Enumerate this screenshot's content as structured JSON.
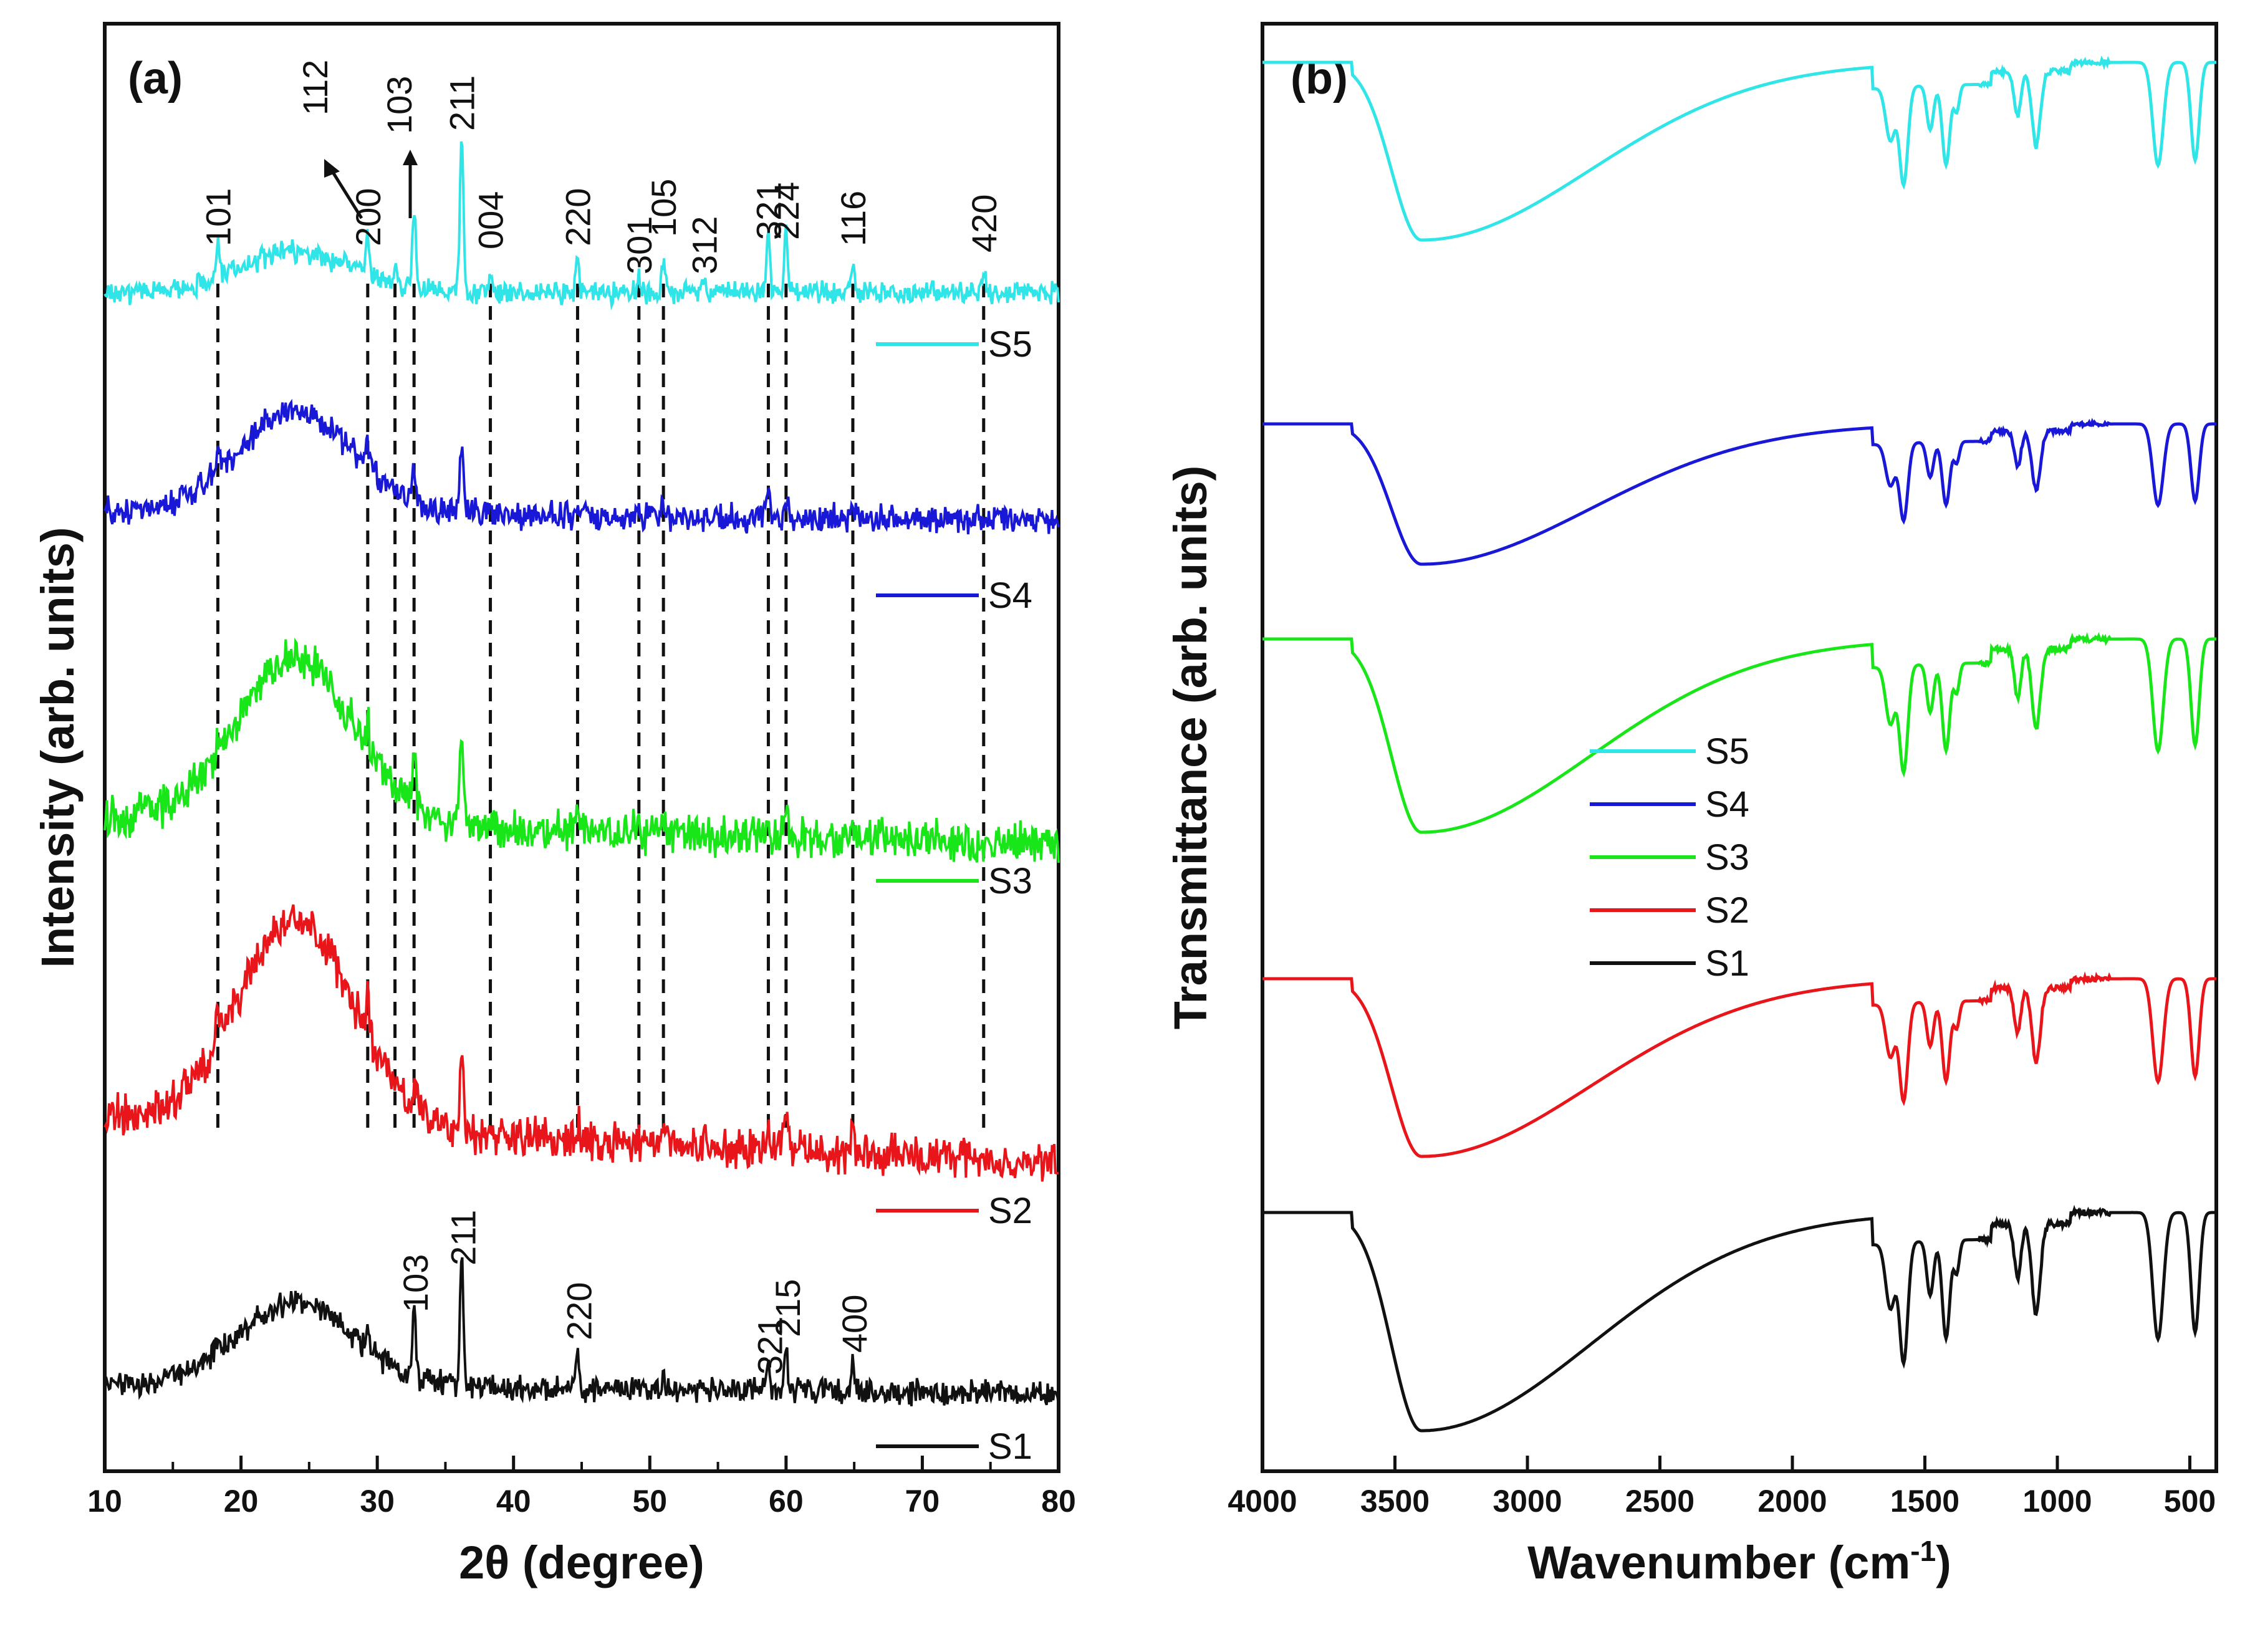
{
  "chart_data": [
    {
      "panel": "(a)",
      "type": "line",
      "xlabel": "2θ (degree)",
      "ylabel": "Intensity (arb. units)",
      "xlim": [
        10,
        80
      ],
      "xticks": [
        "10",
        "20",
        "30",
        "40",
        "50",
        "60",
        "70",
        "80"
      ],
      "y_ticks_shown": false,
      "colors": {
        "S1": "#111111",
        "S2": "#e8161b",
        "S3": "#19e619",
        "S4": "#1818d6",
        "S5": "#2fe5e8"
      },
      "series": [
        {
          "name": "S5",
          "baseline": 10,
          "hump": 1.0,
          "peaks": [
            {
              "x": 18.3,
              "h": 5
            },
            {
              "x": 29.3,
              "h": 6
            },
            {
              "x": 31.3,
              "h": 3
            },
            {
              "x": 32.7,
              "h": 12
            },
            {
              "x": 36.2,
              "h": 24
            },
            {
              "x": 38.3,
              "h": 2
            },
            {
              "x": 44.7,
              "h": 5
            },
            {
              "x": 49.2,
              "h": 2
            },
            {
              "x": 51.0,
              "h": 4
            },
            {
              "x": 54.0,
              "h": 2
            },
            {
              "x": 58.7,
              "h": 9
            },
            {
              "x": 60.0,
              "h": 9
            },
            {
              "x": 64.9,
              "h": 4
            },
            {
              "x": 74.5,
              "h": 3
            }
          ]
        },
        {
          "name": "S4",
          "baseline": 8,
          "hump": 2.5,
          "peaks": [
            {
              "x": 18.3,
              "h": 3
            },
            {
              "x": 29.3,
              "h": 4
            },
            {
              "x": 32.7,
              "h": 5
            },
            {
              "x": 36.2,
              "h": 10
            },
            {
              "x": 44.7,
              "h": 2
            },
            {
              "x": 51.0,
              "h": 2
            },
            {
              "x": 58.7,
              "h": 3
            },
            {
              "x": 60.0,
              "h": 3
            },
            {
              "x": 64.9,
              "h": 2
            }
          ]
        },
        {
          "name": "S3",
          "baseline": 6,
          "hump": 4,
          "peaks": [
            {
              "x": 18.3,
              "h": 3
            },
            {
              "x": 29.3,
              "h": 4
            },
            {
              "x": 32.7,
              "h": 8
            },
            {
              "x": 36.2,
              "h": 14
            },
            {
              "x": 44.7,
              "h": 2
            },
            {
              "x": 51.0,
              "h": 2
            },
            {
              "x": 58.7,
              "h": 3
            },
            {
              "x": 60.0,
              "h": 5
            },
            {
              "x": 64.9,
              "h": 3
            }
          ]
        },
        {
          "name": "S2",
          "baseline": 4,
          "hump": 5,
          "peaks": [
            {
              "x": 18.3,
              "h": 3
            },
            {
              "x": 29.3,
              "h": 5
            },
            {
              "x": 32.7,
              "h": 4
            },
            {
              "x": 36.2,
              "h": 12
            },
            {
              "x": 44.7,
              "h": 2
            },
            {
              "x": 51.0,
              "h": 2
            },
            {
              "x": 58.7,
              "h": 3
            },
            {
              "x": 60.0,
              "h": 5
            },
            {
              "x": 64.9,
              "h": 2
            }
          ]
        },
        {
          "name": "S1",
          "baseline": 2,
          "hump": 2,
          "peaks": [
            {
              "x": 18.3,
              "h": 1.5
            },
            {
              "x": 29.3,
              "h": 2
            },
            {
              "x": 32.7,
              "h": 10
            },
            {
              "x": 36.2,
              "h": 18
            },
            {
              "x": 44.7,
              "h": 5
            },
            {
              "x": 51.0,
              "h": 2
            },
            {
              "x": 58.7,
              "h": 4
            },
            {
              "x": 60.0,
              "h": 6
            },
            {
              "x": 64.9,
              "h": 4
            }
          ]
        }
      ],
      "reference_lines_x": [
        18.3,
        29.3,
        31.3,
        32.7,
        38.3,
        44.7,
        49.2,
        51.0,
        58.7,
        60.0,
        64.9,
        74.5
      ],
      "peak_labels_top": [
        {
          "text": "101",
          "x": 18.3
        },
        {
          "text": "112",
          "x": 31.3,
          "arrow": true
        },
        {
          "text": "200",
          "x": 29.3
        },
        {
          "text": "103",
          "x": 32.7,
          "arrow": true
        },
        {
          "text": "211",
          "x": 36.2
        },
        {
          "text": "004",
          "x": 38.3
        },
        {
          "text": "220",
          "x": 44.7
        },
        {
          "text": "301",
          "x": 49.2
        },
        {
          "text": "105",
          "x": 51.0
        },
        {
          "text": "312",
          "x": 54.0
        },
        {
          "text": "321",
          "x": 58.7
        },
        {
          "text": "224",
          "x": 60.0
        },
        {
          "text": "116",
          "x": 64.9
        },
        {
          "text": "420",
          "x": 74.5
        }
      ],
      "peak_labels_bottom": [
        {
          "text": "103",
          "x": 32.7
        },
        {
          "text": "211",
          "x": 36.2
        },
        {
          "text": "220",
          "x": 44.7
        },
        {
          "text": "321",
          "x": 58.7
        },
        {
          "text": "215",
          "x": 60.0
        },
        {
          "text": "400",
          "x": 64.9
        }
      ],
      "series_labels": [
        "S5",
        "S4",
        "S3",
        "S2",
        "S1"
      ]
    },
    {
      "panel": "(b)",
      "type": "line",
      "xlabel": "Wavenumber (cm",
      "xlabel_sup": "-1",
      "xlabel_suffix": ")",
      "ylabel": "Transmittance (arb. units)",
      "xlim": [
        4000,
        400
      ],
      "xticks": [
        "4000",
        "3500",
        "3000",
        "2500",
        "2000",
        "1500",
        "1000",
        "500"
      ],
      "y_ticks_shown": false,
      "band_features": [
        "broad O-H band ~3400",
        "bands ~1630, 1580, 1420",
        "bands ~1150, 1080",
        "metal-oxygen bands ~620, 480"
      ],
      "legend": [
        "S5",
        "S4",
        "S3",
        "S2",
        "S1"
      ],
      "legend_position": "center",
      "series": [
        {
          "name": "S5",
          "oh_depth": 0.55,
          "band_depth": 0.6
        },
        {
          "name": "S4",
          "oh_depth": 0.42,
          "band_depth": 0.3
        },
        {
          "name": "S3",
          "oh_depth": 0.55,
          "band_depth": 0.55
        },
        {
          "name": "S2",
          "oh_depth": 0.5,
          "band_depth": 0.45
        },
        {
          "name": "S1",
          "oh_depth": 0.62,
          "band_depth": 0.42
        }
      ]
    }
  ]
}
